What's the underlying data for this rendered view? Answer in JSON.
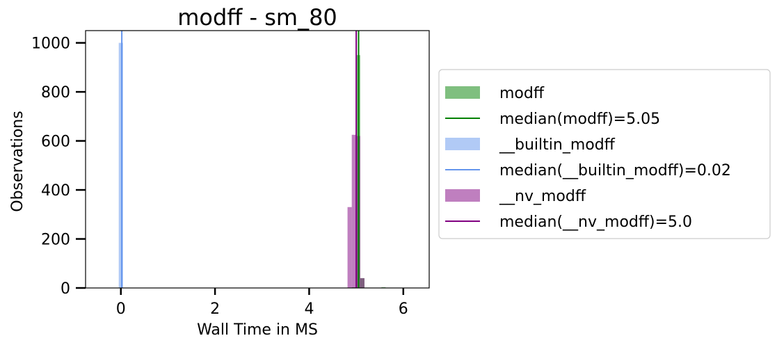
{
  "chart_data": {
    "type": "histogram",
    "title": "modff - sm_80",
    "xlabel": "Wall Time in MS",
    "ylabel": "Observations",
    "xlim": [
      -0.75,
      6.55
    ],
    "ylim": [
      0,
      1050
    ],
    "xticks": [
      0,
      2,
      4,
      6
    ],
    "yticks": [
      0,
      200,
      400,
      600,
      800,
      1000
    ],
    "grid": false,
    "legend_position": "outside-right",
    "series": [
      {
        "name": "modff",
        "color": "#008000",
        "alpha": 0.5,
        "bin_width": 0.09,
        "bins": [
          {
            "x": 4.95,
            "count": 3
          },
          {
            "x": 5.04,
            "count": 950
          },
          {
            "x": 5.13,
            "count": 40
          },
          {
            "x": 5.58,
            "count": 3
          }
        ]
      },
      {
        "name": "__builtin_modff",
        "color": "#6495ED",
        "alpha": 0.5,
        "bin_width": 0.09,
        "bins": [
          {
            "x": 0.0,
            "count": 1000
          }
        ]
      },
      {
        "name": "__nv_modff",
        "color": "#800080",
        "alpha": 0.5,
        "bin_width": 0.09,
        "bins": [
          {
            "x": 4.86,
            "count": 330
          },
          {
            "x": 4.95,
            "count": 625
          },
          {
            "x": 5.04,
            "count": 620
          },
          {
            "x": 5.13,
            "count": 40
          }
        ]
      }
    ],
    "median_lines": [
      {
        "name": "median(modff)=5.05",
        "x": 5.05,
        "color": "#008000"
      },
      {
        "name": "median(__builtin_modff)=0.02",
        "x": 0.02,
        "color": "#6495ED"
      },
      {
        "name": "median(__nv_modff)=5.0",
        "x": 5.0,
        "color": "#800080"
      }
    ],
    "legend": [
      {
        "label": "modff",
        "kind": "patch",
        "color": "#008000"
      },
      {
        "label": "median(modff)=5.05",
        "kind": "line",
        "color": "#008000"
      },
      {
        "label": "__builtin_modff",
        "kind": "patch",
        "color": "#6495ED"
      },
      {
        "label": "median(__builtin_modff)=0.02",
        "kind": "line",
        "color": "#6495ED"
      },
      {
        "label": "__nv_modff",
        "kind": "patch",
        "color": "#800080"
      },
      {
        "label": "median(__nv_modff)=5.0",
        "kind": "line",
        "color": "#800080"
      }
    ]
  }
}
